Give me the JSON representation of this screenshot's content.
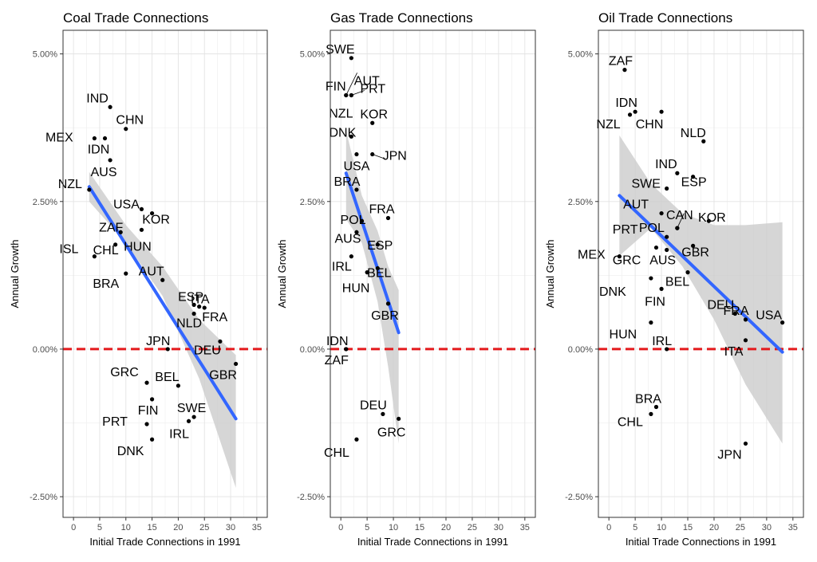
{
  "chart_data": [
    {
      "type": "scatter",
      "title": "Coal Trade Connections",
      "xlabel": "Initial Trade Connections in 1991",
      "ylabel": "Annual Growth",
      "xlim": [
        -2,
        37
      ],
      "ylim": [
        -2.85,
        5.4
      ],
      "xticks": [
        "0",
        "5",
        "10",
        "15",
        "20",
        "25",
        "30",
        "35"
      ],
      "yticks": [
        "-2.50%",
        "0.00%",
        "2.50%",
        "5.00%"
      ],
      "zero_line_color": "#e41a1c",
      "fit_color": "#3366ff",
      "points": [
        {
          "label": "IND",
          "x": 7,
          "y": 4.1
        },
        {
          "label": "CHN",
          "x": 10,
          "y": 3.73
        },
        {
          "label": "MEX",
          "x": 4,
          "y": 3.57
        },
        {
          "label": "IDN",
          "x": 6,
          "y": 3.57
        },
        {
          "label": "AUS",
          "x": 7,
          "y": 3.2
        },
        {
          "label": "NZL",
          "x": 3,
          "y": 2.7
        },
        {
          "label": "USA",
          "x": 13,
          "y": 2.37
        },
        {
          "label": "KOR",
          "x": 15,
          "y": 2.3
        },
        {
          "label": "ZAF",
          "x": 9,
          "y": 1.98
        },
        {
          "label": "HUN",
          "x": 13,
          "y": 2.02
        },
        {
          "label": "CHL",
          "x": 8,
          "y": 1.77
        },
        {
          "label": "ISL",
          "x": 4,
          "y": 1.57
        },
        {
          "label": "BRA",
          "x": 10,
          "y": 1.28
        },
        {
          "label": "AUT",
          "x": 17,
          "y": 1.17
        },
        {
          "label": "ESP",
          "x": 23,
          "y": 0.75
        },
        {
          "label": "ITA",
          "x": 24,
          "y": 0.72
        },
        {
          "label": "FRA",
          "x": 25,
          "y": 0.7
        },
        {
          "label": "NLD",
          "x": 23,
          "y": 0.6
        },
        {
          "label": "JPN",
          "x": 18,
          "y": 0.0
        },
        {
          "label": "DEU",
          "x": 28,
          "y": 0.13
        },
        {
          "label": "GBR",
          "x": 31,
          "y": -0.25
        },
        {
          "label": "GRC",
          "x": 14,
          "y": -0.57
        },
        {
          "label": "BEL",
          "x": 20,
          "y": -0.62
        },
        {
          "label": "FIN",
          "x": 15,
          "y": -0.85
        },
        {
          "label": "SWE",
          "x": 23,
          "y": -1.15
        },
        {
          "label": "PRT",
          "x": 14,
          "y": -1.27
        },
        {
          "label": "IRL",
          "x": 22,
          "y": -1.22
        },
        {
          "label": "DNK",
          "x": 15,
          "y": -1.53
        }
      ],
      "fit": {
        "x0": 3,
        "y0": 2.75,
        "x1": 31,
        "y1": -1.18
      },
      "band_upper": [
        [
          3,
          3.0
        ],
        [
          10,
          2.1
        ],
        [
          17,
          1.4
        ],
        [
          24,
          0.5
        ],
        [
          31,
          -0.1
        ]
      ],
      "band_lower": [
        [
          3,
          2.5
        ],
        [
          10,
          1.8
        ],
        [
          17,
          0.9
        ],
        [
          24,
          -0.5
        ],
        [
          31,
          -2.35
        ]
      ]
    },
    {
      "type": "scatter",
      "title": "Gas Trade Connections",
      "xlabel": "Initial Trade Connections in 1991",
      "ylabel": "Annual Growth",
      "xlim": [
        -2,
        37
      ],
      "ylim": [
        -2.85,
        5.4
      ],
      "xticks": [
        "0",
        "5",
        "10",
        "15",
        "20",
        "25",
        "30",
        "35"
      ],
      "yticks": [
        "-2.50%",
        "0.00%",
        "2.50%",
        "5.00%"
      ],
      "zero_line_color": "#e41a1c",
      "fit_color": "#3366ff",
      "points": [
        {
          "label": "SWE",
          "x": 2,
          "y": 4.93
        },
        {
          "label": "AUT",
          "x": 1,
          "y": 4.3
        },
        {
          "label": "FIN",
          "x": 1,
          "y": 4.3
        },
        {
          "label": "PRT",
          "x": 2,
          "y": 4.3
        },
        {
          "label": "NZL",
          "x": 2,
          "y": 4.3
        },
        {
          "label": "KOR",
          "x": 6,
          "y": 3.83
        },
        {
          "label": "DNK",
          "x": 2,
          "y": 3.6
        },
        {
          "label": "JPN",
          "x": 6,
          "y": 3.3
        },
        {
          "label": "USA",
          "x": 3,
          "y": 3.3
        },
        {
          "label": "BRA",
          "x": 3,
          "y": 2.7
        },
        {
          "label": "FRA",
          "x": 9,
          "y": 2.22
        },
        {
          "label": "POL",
          "x": 4,
          "y": 2.17
        },
        {
          "label": "AUS",
          "x": 3,
          "y": 1.98
        },
        {
          "label": "ESP",
          "x": 7,
          "y": 1.77
        },
        {
          "label": "IRL",
          "x": 2,
          "y": 1.57
        },
        {
          "label": "BEL",
          "x": 7,
          "y": 1.37
        },
        {
          "label": "HUN",
          "x": 5,
          "y": 1.3
        },
        {
          "label": "GBR",
          "x": 9,
          "y": 0.77
        },
        {
          "label": "IDN",
          "x": 1,
          "y": 0.0
        },
        {
          "label": "ZAF",
          "x": 1,
          "y": 0.0
        },
        {
          "label": "DEU",
          "x": 8,
          "y": -1.1
        },
        {
          "label": "GRC",
          "x": 11,
          "y": -1.18
        },
        {
          "label": "CHL",
          "x": 3,
          "y": -1.53
        }
      ],
      "fit": {
        "x0": 1,
        "y0": 2.98,
        "x1": 11,
        "y1": 0.28
      },
      "band_upper": [
        [
          1,
          3.7
        ],
        [
          4,
          2.6
        ],
        [
          7,
          2.0
        ],
        [
          9,
          1.4
        ],
        [
          11,
          1.0
        ]
      ],
      "band_lower": [
        [
          1,
          2.2
        ],
        [
          4,
          1.8
        ],
        [
          7,
          0.8
        ],
        [
          9,
          -0.3
        ],
        [
          11,
          -1.6
        ]
      ]
    },
    {
      "type": "scatter",
      "title": "Oil Trade Connections",
      "xlabel": "Initial Trade Connections in 1991",
      "ylabel": "Annual Growth",
      "xlim": [
        -2,
        37
      ],
      "ylim": [
        -2.85,
        5.4
      ],
      "xticks": [
        "0",
        "5",
        "10",
        "15",
        "20",
        "25",
        "30",
        "35"
      ],
      "yticks": [
        "-2.50%",
        "0.00%",
        "2.50%",
        "5.00%"
      ],
      "zero_line_color": "#e41a1c",
      "fit_color": "#3366ff",
      "points": [
        {
          "label": "ZAF",
          "x": 3,
          "y": 4.73
        },
        {
          "label": "IDN",
          "x": 5,
          "y": 4.02
        },
        {
          "label": "NZL",
          "x": 4,
          "y": 3.97
        },
        {
          "label": "CHN",
          "x": 10,
          "y": 4.02
        },
        {
          "label": "NLD",
          "x": 18,
          "y": 3.52
        },
        {
          "label": "IND",
          "x": 13,
          "y": 2.98
        },
        {
          "label": "SWE",
          "x": 11,
          "y": 2.72
        },
        {
          "label": "ESP",
          "x": 16,
          "y": 2.92
        },
        {
          "label": "AUT",
          "x": 10,
          "y": 2.3
        },
        {
          "label": "CAN",
          "x": 13,
          "y": 2.05
        },
        {
          "label": "POL",
          "x": 13,
          "y": 2.05
        },
        {
          "label": "KOR",
          "x": 19,
          "y": 2.17
        },
        {
          "label": "PRT",
          "x": 11,
          "y": 1.9
        },
        {
          "label": "MEX",
          "x": 2,
          "y": 1.57
        },
        {
          "label": "AUS",
          "x": 11,
          "y": 1.68
        },
        {
          "label": "GBR",
          "x": 16,
          "y": 1.75
        },
        {
          "label": "GRC",
          "x": 9,
          "y": 1.72
        },
        {
          "label": "BEL",
          "x": 15,
          "y": 1.3
        },
        {
          "label": "DNK",
          "x": 8,
          "y": 1.2
        },
        {
          "label": "FIN",
          "x": 10,
          "y": 1.02
        },
        {
          "label": "DEU",
          "x": 24,
          "y": 0.6
        },
        {
          "label": "FRA",
          "x": 26,
          "y": 0.5
        },
        {
          "label": "USA",
          "x": 33,
          "y": 0.45
        },
        {
          "label": "HUN",
          "x": 8,
          "y": 0.45
        },
        {
          "label": "IRL",
          "x": 11,
          "y": 0.0
        },
        {
          "label": "ITA",
          "x": 26,
          "y": 0.15
        },
        {
          "label": "BRA",
          "x": 9,
          "y": -0.98
        },
        {
          "label": "CHL",
          "x": 8,
          "y": -1.1
        },
        {
          "label": "JPN",
          "x": 26,
          "y": -1.6
        }
      ],
      "fit": {
        "x0": 2,
        "y0": 2.6,
        "x1": 33,
        "y1": -0.05
      },
      "band_upper": [
        [
          2,
          3.62
        ],
        [
          8,
          2.8
        ],
        [
          14,
          2.3
        ],
        [
          20,
          2.1
        ],
        [
          26,
          2.1
        ],
        [
          33,
          2.15
        ]
      ],
      "band_lower": [
        [
          2,
          1.58
        ],
        [
          8,
          2.05
        ],
        [
          14,
          1.4
        ],
        [
          20,
          0.5
        ],
        [
          26,
          -0.6
        ],
        [
          33,
          -1.6
        ]
      ]
    }
  ]
}
